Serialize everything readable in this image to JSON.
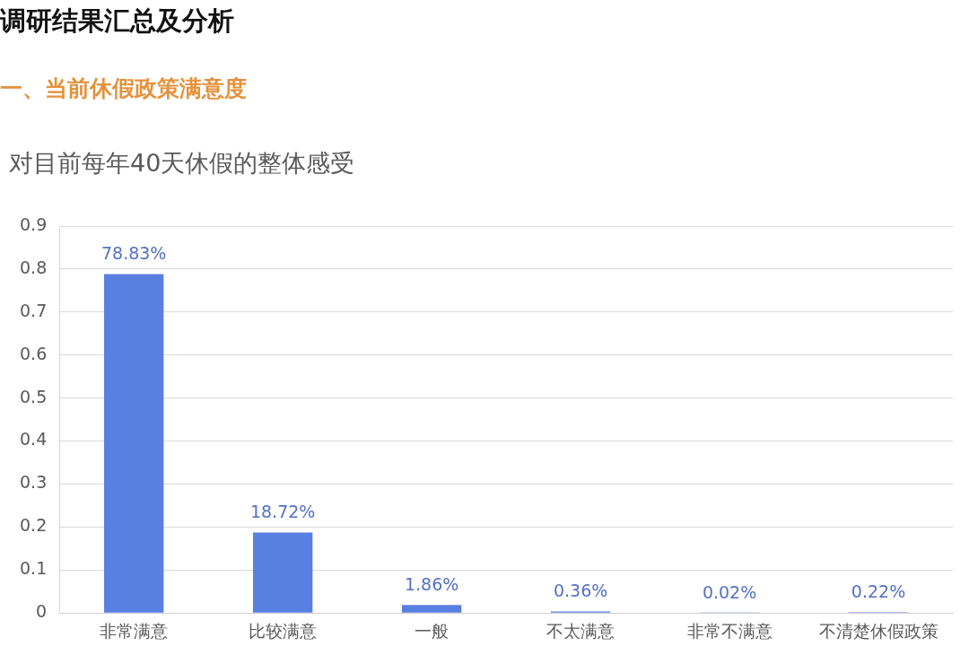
{
  "chart_data": {
    "type": "bar",
    "title": "调研结果汇总及分析",
    "subtitle": "一、当前休假政策满意度",
    "annotations": [
      "对目前每年40天休假的整体感受"
    ],
    "categories": [
      "非常满意",
      "比较满意",
      "一般",
      "不太满意",
      "非常不满意",
      "不清楚休假政策"
    ],
    "values": [
      0.7883,
      0.1872,
      0.0186,
      0.0036,
      0.0002,
      0.0022
    ],
    "value_labels": [
      "78.83%",
      "18.72%",
      "1.86%",
      "0.36%",
      "0.02%",
      "0.22%"
    ],
    "color": "#5a7fe3",
    "ylim": [
      0,
      0.9
    ],
    "yticks": [
      0,
      0.1,
      0.2,
      0.3,
      0.4,
      0.5,
      0.6,
      0.7,
      0.8,
      0.9
    ],
    "grid": "y"
  }
}
